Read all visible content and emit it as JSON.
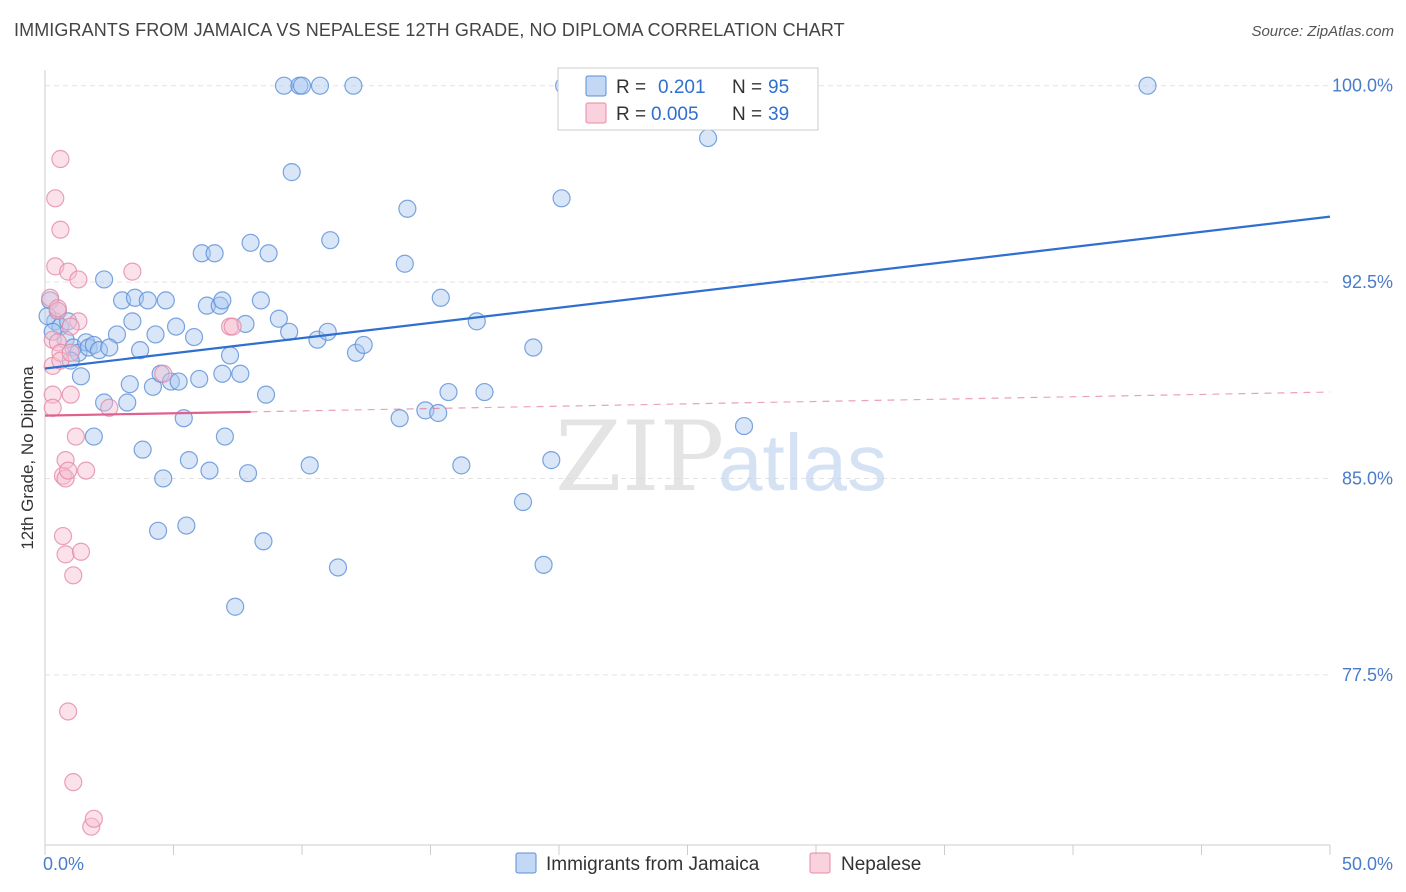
{
  "title": "IMMIGRANTS FROM JAMAICA VS NEPALESE 12TH GRADE, NO DIPLOMA CORRELATION CHART",
  "source": "Source: ZipAtlas.com",
  "colors": {
    "jamaica_fill": "#a8c8f0",
    "jamaica_stroke": "#5b8fd8",
    "jamaica_line": "#2f6fd0",
    "nepalese_fill": "#f7bfd0",
    "nepalese_stroke": "#e48aa8",
    "nepalese_line": "#e06090",
    "grid": "#e3e3e3",
    "tick_text": "#4a7cc9"
  },
  "legend": {
    "rows": [
      {
        "r_label": "R =",
        "r_value": "0.201",
        "n_label": "N =",
        "n_value": "95"
      },
      {
        "r_label": "R =",
        "r_value": "0.005",
        "n_label": "N =",
        "n_value": "39"
      }
    ]
  },
  "watermark": {
    "zip": "ZIP",
    "atlas": "atlas"
  },
  "chart_data": {
    "type": "scatter",
    "xlabel": "",
    "ylabel": "12th Grade, No Diploma",
    "xlim": [
      0,
      50
    ],
    "ylim": [
      71,
      100.6
    ],
    "x_tick_labels": [
      "0.0%",
      "50.0%"
    ],
    "y_ticks": [
      77.5,
      85.0,
      92.5,
      100.0
    ],
    "y_tick_labels": [
      "77.5%",
      "85.0%",
      "92.5%",
      "100.0%"
    ],
    "grid": true,
    "legend_position": "top-center",
    "series": [
      {
        "name": "Immigrants from Jamaica",
        "trend": {
          "x": [
            0,
            50
          ],
          "y": [
            89.2,
            95.0
          ],
          "dashed_from": null
        },
        "points": [
          [
            0.2,
            91.8
          ],
          [
            0.4,
            91.0
          ],
          [
            0.5,
            91.4
          ],
          [
            0.6,
            90.8
          ],
          [
            0.8,
            90.3
          ],
          [
            0.9,
            91.0
          ],
          [
            1.1,
            90.0
          ],
          [
            1.3,
            89.8
          ],
          [
            1.4,
            88.9
          ],
          [
            1.6,
            90.2
          ],
          [
            1.7,
            90.0
          ],
          [
            1.9,
            90.1
          ],
          [
            2.1,
            89.9
          ],
          [
            2.3,
            87.9
          ],
          [
            1.9,
            86.6
          ],
          [
            2.3,
            92.6
          ],
          [
            2.8,
            90.5
          ],
          [
            3.0,
            91.8
          ],
          [
            3.2,
            87.9
          ],
          [
            3.3,
            88.6
          ],
          [
            3.4,
            91.0
          ],
          [
            3.5,
            91.9
          ],
          [
            3.7,
            89.9
          ],
          [
            3.8,
            86.1
          ],
          [
            4.0,
            91.8
          ],
          [
            4.2,
            88.5
          ],
          [
            4.3,
            90.5
          ],
          [
            4.4,
            83.0
          ],
          [
            4.5,
            89.0
          ],
          [
            4.6,
            85.0
          ],
          [
            4.7,
            91.8
          ],
          [
            4.9,
            88.7
          ],
          [
            5.1,
            90.8
          ],
          [
            5.2,
            88.7
          ],
          [
            5.4,
            87.3
          ],
          [
            5.5,
            83.2
          ],
          [
            5.6,
            85.7
          ],
          [
            5.8,
            90.4
          ],
          [
            6.0,
            88.8
          ],
          [
            6.1,
            93.6
          ],
          [
            6.3,
            91.6
          ],
          [
            6.4,
            85.3
          ],
          [
            6.6,
            93.6
          ],
          [
            6.8,
            91.6
          ],
          [
            6.9,
            89.0
          ],
          [
            7.0,
            86.6
          ],
          [
            7.2,
            89.7
          ],
          [
            7.4,
            80.1
          ],
          [
            7.6,
            89.0
          ],
          [
            7.8,
            90.9
          ],
          [
            7.9,
            85.2
          ],
          [
            8.0,
            94.0
          ],
          [
            8.4,
            91.8
          ],
          [
            8.5,
            82.6
          ],
          [
            8.6,
            88.2
          ],
          [
            8.7,
            93.6
          ],
          [
            9.1,
            91.1
          ],
          [
            9.3,
            100.0
          ],
          [
            9.5,
            90.6
          ],
          [
            9.6,
            96.7
          ],
          [
            9.9,
            100.0
          ],
          [
            10.0,
            100.0
          ],
          [
            10.3,
            85.5
          ],
          [
            10.6,
            90.3
          ],
          [
            10.7,
            100.0
          ],
          [
            11.0,
            90.6
          ],
          [
            11.1,
            94.1
          ],
          [
            11.4,
            81.6
          ],
          [
            12.0,
            100.0
          ],
          [
            12.1,
            89.8
          ],
          [
            12.4,
            90.1
          ],
          [
            13.8,
            87.3
          ],
          [
            14.0,
            93.2
          ],
          [
            14.1,
            95.3
          ],
          [
            14.8,
            87.6
          ],
          [
            15.3,
            87.5
          ],
          [
            15.4,
            91.9
          ],
          [
            15.7,
            88.3
          ],
          [
            16.2,
            85.5
          ],
          [
            16.8,
            91.0
          ],
          [
            17.1,
            88.3
          ],
          [
            18.6,
            84.1
          ],
          [
            19.0,
            90.0
          ],
          [
            19.4,
            81.7
          ],
          [
            19.7,
            85.7
          ],
          [
            20.1,
            95.7
          ],
          [
            20.2,
            100.0
          ],
          [
            25.8,
            98.0
          ],
          [
            27.2,
            87.0
          ],
          [
            42.9,
            100.0
          ],
          [
            0.1,
            91.2
          ],
          [
            0.3,
            90.6
          ],
          [
            1.0,
            89.5
          ],
          [
            2.5,
            90.0
          ],
          [
            6.9,
            91.8
          ]
        ]
      },
      {
        "name": "Nepalese",
        "trend": {
          "x": [
            0,
            50
          ],
          "y": [
            87.4,
            88.3
          ],
          "dashed_from": 8.0
        },
        "points": [
          [
            0.2,
            91.9
          ],
          [
            0.3,
            90.3
          ],
          [
            0.3,
            88.2
          ],
          [
            0.3,
            87.7
          ],
          [
            0.3,
            89.3
          ],
          [
            0.4,
            95.7
          ],
          [
            0.4,
            93.1
          ],
          [
            0.5,
            91.4
          ],
          [
            0.5,
            90.2
          ],
          [
            0.6,
            89.8
          ],
          [
            0.6,
            89.5
          ],
          [
            0.6,
            97.2
          ],
          [
            0.6,
            94.5
          ],
          [
            0.7,
            85.1
          ],
          [
            0.7,
            82.8
          ],
          [
            0.8,
            82.1
          ],
          [
            0.8,
            85.0
          ],
          [
            0.8,
            85.7
          ],
          [
            0.9,
            92.9
          ],
          [
            0.9,
            85.3
          ],
          [
            0.9,
            76.1
          ],
          [
            1.0,
            89.8
          ],
          [
            1.0,
            88.2
          ],
          [
            1.1,
            73.4
          ],
          [
            1.1,
            81.3
          ],
          [
            1.2,
            86.6
          ],
          [
            1.3,
            91.0
          ],
          [
            1.3,
            92.6
          ],
          [
            1.4,
            82.2
          ],
          [
            1.6,
            85.3
          ],
          [
            1.8,
            71.7
          ],
          [
            1.9,
            72.0
          ],
          [
            2.5,
            87.7
          ],
          [
            3.4,
            92.9
          ],
          [
            4.6,
            89.0
          ],
          [
            7.2,
            90.8
          ],
          [
            7.3,
            90.8
          ],
          [
            0.5,
            91.5
          ],
          [
            1.0,
            90.8
          ]
        ]
      }
    ]
  },
  "bottom_legend": [
    "Immigrants from Jamaica",
    "Nepalese"
  ]
}
